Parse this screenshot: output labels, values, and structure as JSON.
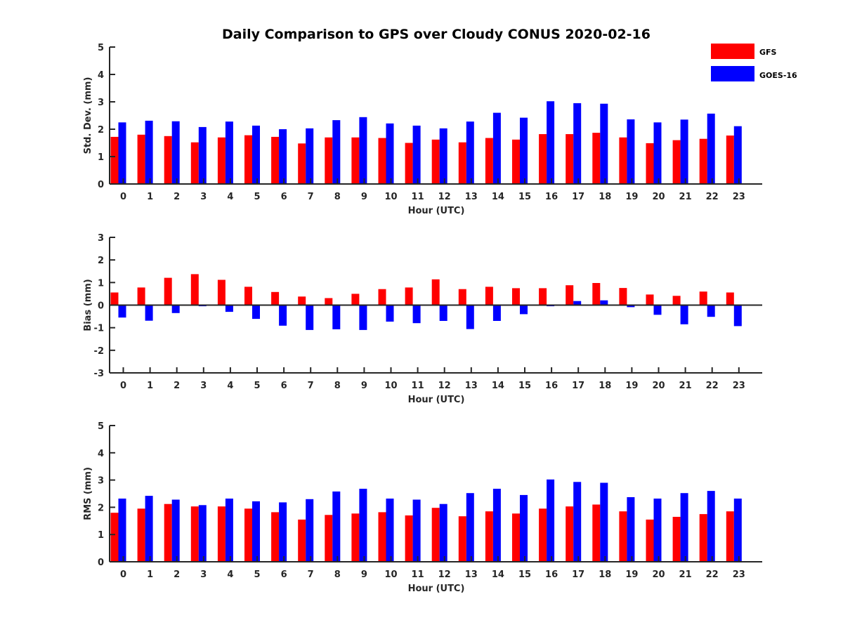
{
  "title": "Daily Comparison to GPS over Cloudy CONUS 2020-02-16",
  "legend": [
    {
      "name": "GFS",
      "color": "#ff0000"
    },
    {
      "name": "GOES-16",
      "color": "#0000ff"
    }
  ],
  "chart_data": [
    {
      "type": "bar",
      "xlabel": "Hour (UTC)",
      "ylabel": "Std. Dev. (mm)",
      "ylim": [
        0,
        5
      ],
      "yticks": [
        0,
        1,
        2,
        3,
        4,
        5
      ],
      "categories": [
        "0",
        "1",
        "2",
        "3",
        "4",
        "5",
        "6",
        "7",
        "8",
        "9",
        "10",
        "11",
        "12",
        "13",
        "14",
        "15",
        "16",
        "17",
        "18",
        "19",
        "20",
        "21",
        "22",
        "23"
      ],
      "series": [
        {
          "name": "GFS",
          "color": "#ff0000",
          "values": [
            1.72,
            1.8,
            1.75,
            1.52,
            1.7,
            1.78,
            1.72,
            1.48,
            1.7,
            1.7,
            1.68,
            1.5,
            1.62,
            1.52,
            1.68,
            1.62,
            1.82,
            1.82,
            1.87,
            1.7,
            1.49,
            1.6,
            1.65,
            1.77
          ]
        },
        {
          "name": "GOES-16",
          "color": "#0000ff",
          "values": [
            2.25,
            2.31,
            2.29,
            2.08,
            2.28,
            2.13,
            2.0,
            2.03,
            2.33,
            2.44,
            2.21,
            2.13,
            2.03,
            2.28,
            2.6,
            2.42,
            3.02,
            2.95,
            2.93,
            2.36,
            2.25,
            2.35,
            2.57,
            2.11
          ]
        }
      ],
      "legend": "top-right",
      "grid": false
    },
    {
      "type": "bar",
      "xlabel": "Hour (UTC)",
      "ylabel": "Bias (mm)",
      "ylim": [
        -3,
        3
      ],
      "yticks": [
        -3,
        -2,
        -1,
        0,
        1,
        2,
        3
      ],
      "categories": [
        "0",
        "1",
        "2",
        "3",
        "4",
        "5",
        "6",
        "7",
        "8",
        "9",
        "10",
        "11",
        "12",
        "13",
        "14",
        "15",
        "16",
        "17",
        "18",
        "19",
        "20",
        "21",
        "22",
        "23"
      ],
      "series": [
        {
          "name": "GFS",
          "color": "#ff0000",
          "values": [
            0.56,
            0.78,
            1.21,
            1.37,
            1.12,
            0.81,
            0.58,
            0.38,
            0.31,
            0.5,
            0.71,
            0.78,
            1.14,
            0.71,
            0.81,
            0.75,
            0.75,
            0.88,
            0.98,
            0.76,
            0.47,
            0.41,
            0.6,
            0.56
          ]
        },
        {
          "name": "GOES-16",
          "color": "#0000ff",
          "values": [
            -0.55,
            -0.69,
            -0.35,
            -0.05,
            -0.3,
            -0.61,
            -0.91,
            -1.1,
            -1.07,
            -1.1,
            -0.73,
            -0.8,
            -0.7,
            -1.06,
            -0.7,
            -0.4,
            -0.05,
            0.18,
            0.21,
            -0.09,
            -0.43,
            -0.85,
            -0.52,
            -0.93
          ]
        }
      ],
      "grid": false
    },
    {
      "type": "bar",
      "xlabel": "Hour (UTC)",
      "ylabel": "RMS (mm)",
      "ylim": [
        0,
        5
      ],
      "yticks": [
        0,
        1,
        2,
        3,
        4,
        5
      ],
      "categories": [
        "0",
        "1",
        "2",
        "3",
        "4",
        "5",
        "6",
        "7",
        "8",
        "9",
        "10",
        "11",
        "12",
        "13",
        "14",
        "15",
        "16",
        "17",
        "18",
        "19",
        "20",
        "21",
        "22",
        "23"
      ],
      "series": [
        {
          "name": "GFS",
          "color": "#ff0000",
          "values": [
            1.8,
            1.95,
            2.12,
            2.03,
            2.03,
            1.95,
            1.82,
            1.55,
            1.72,
            1.77,
            1.82,
            1.7,
            1.98,
            1.67,
            1.85,
            1.77,
            1.95,
            2.03,
            2.1,
            1.85,
            1.55,
            1.65,
            1.75,
            1.85
          ]
        },
        {
          "name": "GOES-16",
          "color": "#0000ff",
          "values": [
            2.32,
            2.42,
            2.28,
            2.08,
            2.32,
            2.22,
            2.18,
            2.3,
            2.58,
            2.68,
            2.32,
            2.28,
            2.12,
            2.52,
            2.68,
            2.45,
            3.02,
            2.93,
            2.9,
            2.37,
            2.32,
            2.52,
            2.6,
            2.32
          ]
        }
      ],
      "grid": false
    }
  ]
}
